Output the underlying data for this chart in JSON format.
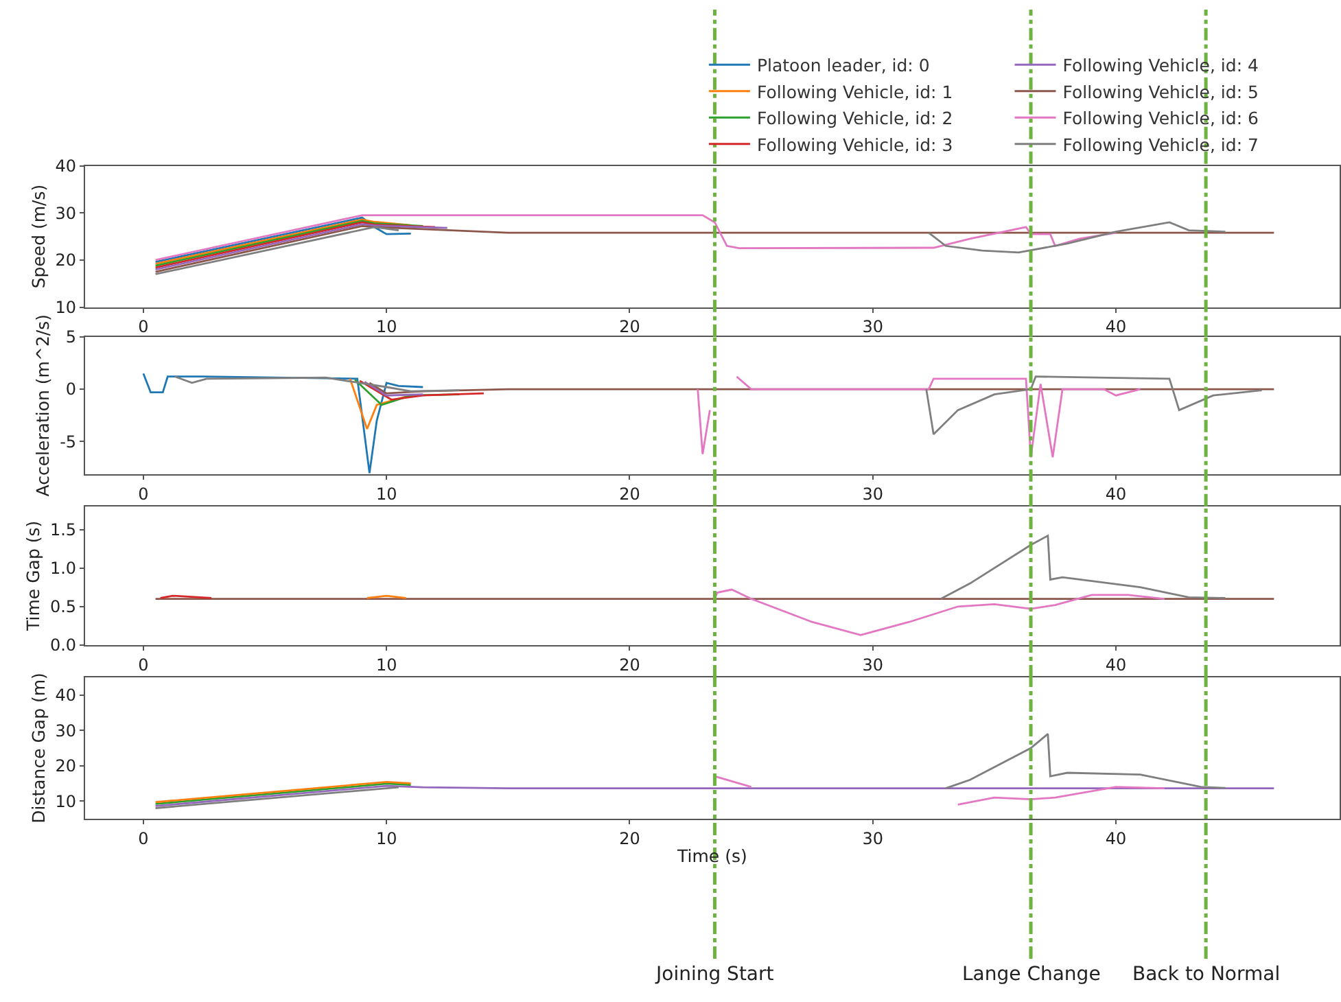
{
  "chart_data": [
    {
      "type": "line",
      "ylabel": "Speed (m/s)",
      "xlim": [
        -2.4,
        49.2
      ],
      "xticks": [
        0,
        10,
        20,
        30,
        40
      ],
      "ylim": [
        10,
        40
      ],
      "yticks": [
        10,
        20,
        30,
        40
      ],
      "legend": "top right",
      "ref_lines": [
        {
          "axis": "x",
          "value": 23.5,
          "color": "#6db33f",
          "line_style": "dashdot"
        },
        {
          "axis": "x",
          "value": 36.5,
          "color": "#6db33f",
          "line_style": "dashdot"
        },
        {
          "axis": "x",
          "value": 43.7,
          "color": "#6db33f",
          "line_style": "dashdot"
        }
      ],
      "series": [
        {
          "name": "Platoon leader, id: 0",
          "color": "#1f77b4",
          "x": [
            0.5,
            9,
            9.5,
            10,
            11
          ],
          "values": [
            19.6,
            29,
            27,
            25.5,
            25.6
          ]
        },
        {
          "name": "Following Vehicle, id: 1",
          "color": "#ff7f0e",
          "x": [
            0.5,
            9,
            9.5,
            11
          ],
          "values": [
            19.2,
            28.6,
            28.1,
            27.4
          ]
        },
        {
          "name": "Following Vehicle, id: 2",
          "color": "#2ca02c",
          "x": [
            0.5,
            9,
            9.5,
            11.5
          ],
          "values": [
            18.8,
            28.3,
            27.8,
            27.2
          ]
        },
        {
          "name": "Following Vehicle, id: 3",
          "color": "#d62728",
          "x": [
            0.5,
            9,
            9.5,
            12
          ],
          "values": [
            18.4,
            28,
            27.5,
            27
          ]
        },
        {
          "name": "Following Vehicle, id: 4",
          "color": "#9467bd",
          "x": [
            0.5,
            9,
            9.5,
            12.5
          ],
          "values": [
            18,
            27.6,
            27.3,
            26.8
          ]
        },
        {
          "name": "Following Vehicle, id: 5",
          "color": "#8c564b",
          "x": [
            0.5,
            9,
            9.5,
            15,
            46.5
          ],
          "values": [
            17.5,
            27.2,
            27,
            25.8,
            25.8
          ]
        },
        {
          "name": "Following Vehicle, id: 6",
          "color": "#e377c2",
          "x": [
            0.5,
            9,
            23,
            23.5,
            24,
            24.5,
            32.5,
            34,
            36.3,
            36.5,
            37.3,
            37.5,
            38.5,
            40
          ],
          "values": [
            20,
            29.5,
            29.5,
            28,
            23,
            22.5,
            22.6,
            24.5,
            27,
            25.5,
            25.5,
            23,
            24.5,
            25.8
          ]
        },
        {
          "name": "Following Vehicle, id: 7",
          "color": "#7f7f7f",
          "x": [
            0.5,
            9.5,
            10.5,
            20,
            32.3,
            33,
            34.5,
            36,
            38,
            40,
            42.2,
            43,
            44.5
          ],
          "values": [
            17,
            27,
            26.3,
            null,
            25.8,
            23,
            22,
            21.6,
            23.5,
            26,
            28,
            26.3,
            26
          ]
        }
      ]
    },
    {
      "type": "line",
      "ylabel": "Acceleration (m^2/s)",
      "xlim": [
        -2.4,
        49.2
      ],
      "xticks": [
        0,
        10,
        20,
        30,
        40
      ],
      "ylim": [
        -8.1,
        5
      ],
      "yticks": [
        -5,
        0,
        5
      ],
      "ref_lines": [
        {
          "axis": "x",
          "value": 23.5,
          "color": "#6db33f",
          "line_style": "dashdot"
        },
        {
          "axis": "x",
          "value": 36.5,
          "color": "#6db33f",
          "line_style": "dashdot"
        },
        {
          "axis": "x",
          "value": 43.7,
          "color": "#6db33f",
          "line_style": "dashdot"
        }
      ],
      "series": [
        {
          "color": "#1f77b4",
          "x": [
            0,
            0.3,
            0.8,
            1,
            1.5,
            2.4,
            8.8,
            9.3,
            9.6,
            10,
            10.5,
            11.5
          ],
          "values": [
            1.5,
            -0.3,
            -0.3,
            1.2,
            1.2,
            1.2,
            1.0,
            -8,
            -3,
            0.6,
            0.3,
            0.2
          ]
        },
        {
          "color": "#ff7f0e",
          "x": [
            8.5,
            9.2,
            9.6,
            10.8
          ],
          "values": [
            1.0,
            -3.8,
            -1.5,
            -0.7
          ]
        },
        {
          "color": "#2ca02c",
          "x": [
            8.7,
            9.8,
            11,
            13
          ],
          "values": [
            0.9,
            -1.5,
            -0.6,
            -0.5
          ]
        },
        {
          "color": "#d62728",
          "x": [
            8.9,
            10.2,
            11.5,
            14
          ],
          "values": [
            0.8,
            -1,
            -0.6,
            -0.4
          ]
        },
        {
          "color": "#9467bd",
          "x": [
            9.1,
            10,
            11.5
          ],
          "values": [
            0.7,
            -0.6,
            -0.5
          ]
        },
        {
          "color": "#8c564b",
          "x": [
            9.3,
            10,
            11.5,
            15,
            46.5
          ],
          "values": [
            0.6,
            -0.4,
            -0.2,
            0,
            0
          ]
        },
        {
          "color": "#e377c2",
          "x": [
            22.8,
            23,
            23.3,
            23.6,
            24,
            24.4,
            25,
            32.3,
            32.5,
            36.3,
            36.5,
            36.9,
            37.4,
            37.8,
            39.5,
            40,
            41
          ],
          "values": [
            0,
            -6.2,
            -2,
            null,
            null,
            1.2,
            0,
            0,
            1.0,
            1.0,
            -6.5,
            0.5,
            -6.5,
            0,
            0,
            -0.6,
            0
          ]
        },
        {
          "color": "#7f7f7f",
          "x": [
            1.3,
            2,
            2.6,
            7.5,
            10,
            11,
            13,
            20,
            32.2,
            32.5,
            33.5,
            35,
            36.5,
            36.7,
            42.2,
            42.6,
            44,
            46
          ],
          "values": [
            1.2,
            0.6,
            1.0,
            1.1,
            0.2,
            -0.2,
            -0.1,
            null,
            0,
            -4.3,
            -2,
            -0.5,
            0,
            1.2,
            1.0,
            -2,
            -0.6,
            -0.1
          ]
        }
      ]
    },
    {
      "type": "line",
      "ylabel": "Time Gap (s)",
      "xlim": [
        -2.4,
        49.2
      ],
      "xticks": [
        0,
        10,
        20,
        30,
        40
      ],
      "ylim": [
        0,
        1.8
      ],
      "yticks": [
        {
          "value": 0,
          "label": "0.0"
        },
        {
          "value": 0.5,
          "label": "0.5"
        },
        {
          "value": 1,
          "label": "1.0"
        },
        {
          "value": 1.5,
          "label": "1.5"
        }
      ],
      "ref_lines": [
        {
          "axis": "x",
          "value": 23.5,
          "color": "#6db33f",
          "line_style": "dashdot"
        },
        {
          "axis": "x",
          "value": 36.5,
          "color": "#6db33f",
          "line_style": "dashdot"
        },
        {
          "axis": "x",
          "value": 43.7,
          "color": "#6db33f",
          "line_style": "dashdot"
        }
      ],
      "series": [
        {
          "color": "#8c564b",
          "x": [
            0.5,
            46.5
          ],
          "values": [
            0.6,
            0.6
          ]
        },
        {
          "color": "#d62728",
          "x": [
            0.7,
            1.2,
            2.8
          ],
          "values": [
            0.61,
            0.64,
            0.61
          ]
        },
        {
          "color": "#ff7f0e",
          "x": [
            9.2,
            10,
            10.8
          ],
          "values": [
            0.61,
            0.64,
            0.61
          ]
        },
        {
          "color": "#e377c2",
          "x": [
            23.5,
            23.6,
            24.2,
            25,
            27.5,
            29.5,
            31.5,
            33.5,
            35,
            36.5,
            37.5,
            39,
            40.5,
            42
          ],
          "values": [
            0.6,
            0.68,
            0.72,
            0.6,
            0.3,
            0.13,
            0.3,
            0.5,
            0.53,
            0.47,
            0.52,
            0.65,
            0.65,
            0.6
          ]
        },
        {
          "color": "#7f7f7f",
          "x": [
            32.8,
            34,
            36.5,
            37.2,
            37.3,
            37.8,
            41,
            43,
            44.5
          ],
          "values": [
            0.6,
            0.8,
            1.3,
            1.42,
            0.85,
            0.88,
            0.75,
            0.62,
            0.61
          ]
        }
      ]
    },
    {
      "type": "line",
      "ylabel": "Distance Gap (m)",
      "xlabel": "Time (s)",
      "xlim": [
        -2.4,
        49.2
      ],
      "xticks": [
        0,
        10,
        20,
        30,
        40
      ],
      "ylim": [
        5,
        45
      ],
      "yticks": [
        10,
        20,
        30,
        40
      ],
      "ref_lines": [
        {
          "axis": "x",
          "value": 23.5,
          "color": "#6db33f",
          "line_style": "dashdot",
          "label": "Joining Start"
        },
        {
          "axis": "x",
          "value": 36.5,
          "color": "#6db33f",
          "line_style": "dashdot",
          "label": "Lange Change"
        },
        {
          "axis": "x",
          "value": 43.7,
          "color": "#6db33f",
          "line_style": "dashdot",
          "label": "Back to Normal"
        }
      ],
      "series": [
        {
          "color": "#9467bd",
          "x": [
            0.5,
            10,
            11.5,
            15,
            46.5
          ],
          "values": [
            8.6,
            14.3,
            13.9,
            13.6,
            13.6
          ]
        },
        {
          "color": "#2ca02c",
          "x": [
            0.5,
            10,
            11
          ],
          "values": [
            9.2,
            14.9,
            14.6
          ]
        },
        {
          "color": "#ff7f0e",
          "x": [
            0.5,
            10,
            11
          ],
          "values": [
            9.7,
            15.4,
            15.0
          ]
        },
        {
          "color": "#e377c2",
          "x": [
            23.5,
            25,
            27.6,
            31.7,
            33.5,
            35,
            36.5,
            37.5,
            40,
            42
          ],
          "values": [
            17,
            14,
            null,
            null,
            9,
            11,
            10.5,
            11,
            14,
            13.6
          ]
        },
        {
          "color": "#7f7f7f",
          "x": [
            0.5,
            10.5,
            20,
            33,
            34,
            36.5,
            37.2,
            37.3,
            38,
            41,
            43.5,
            44.5
          ],
          "values": [
            8.0,
            13.9,
            null,
            13.6,
            16,
            25,
            29,
            17,
            18,
            17.5,
            14,
            13.7
          ]
        }
      ]
    }
  ]
}
